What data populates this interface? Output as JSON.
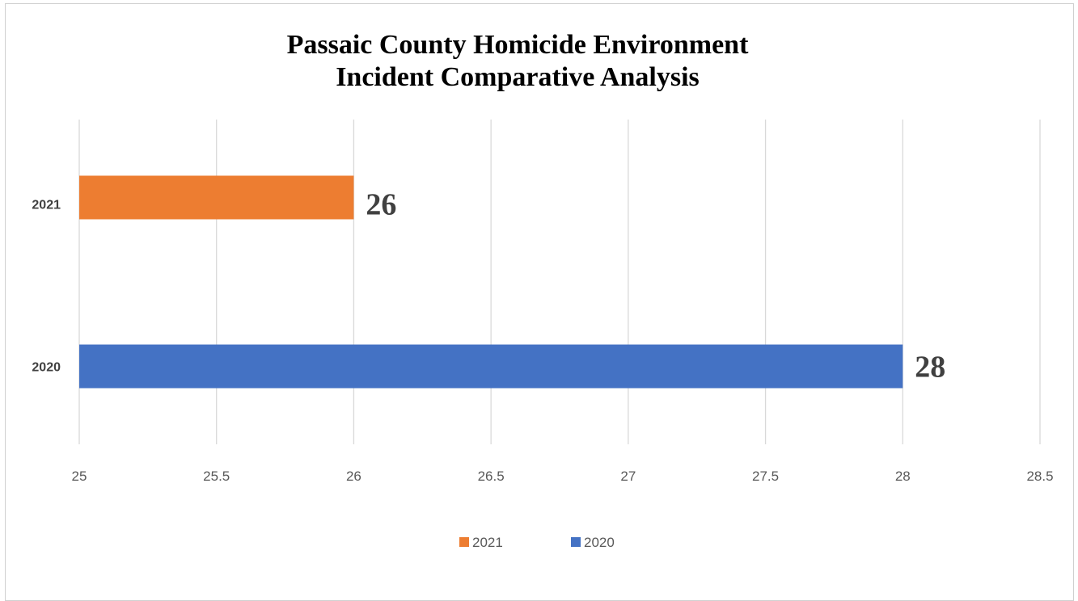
{
  "chart_data": {
    "type": "bar",
    "orientation": "horizontal",
    "title_lines": [
      "Passaic County Homicide Environment",
      "Incident Comparative Analysis"
    ],
    "categories": [
      "2021",
      "2020"
    ],
    "series": [
      {
        "name": "2021",
        "category": "2021",
        "value": 26,
        "color": "#ED7D31"
      },
      {
        "name": "2020",
        "category": "2020",
        "value": 28,
        "color": "#4472C4"
      }
    ],
    "xlim": [
      25,
      28.5
    ],
    "x_ticks": [
      "25",
      "25.5",
      "26",
      "26.5",
      "27",
      "27.5",
      "28",
      "28.5"
    ],
    "grid": true,
    "legend_position": "bottom"
  }
}
